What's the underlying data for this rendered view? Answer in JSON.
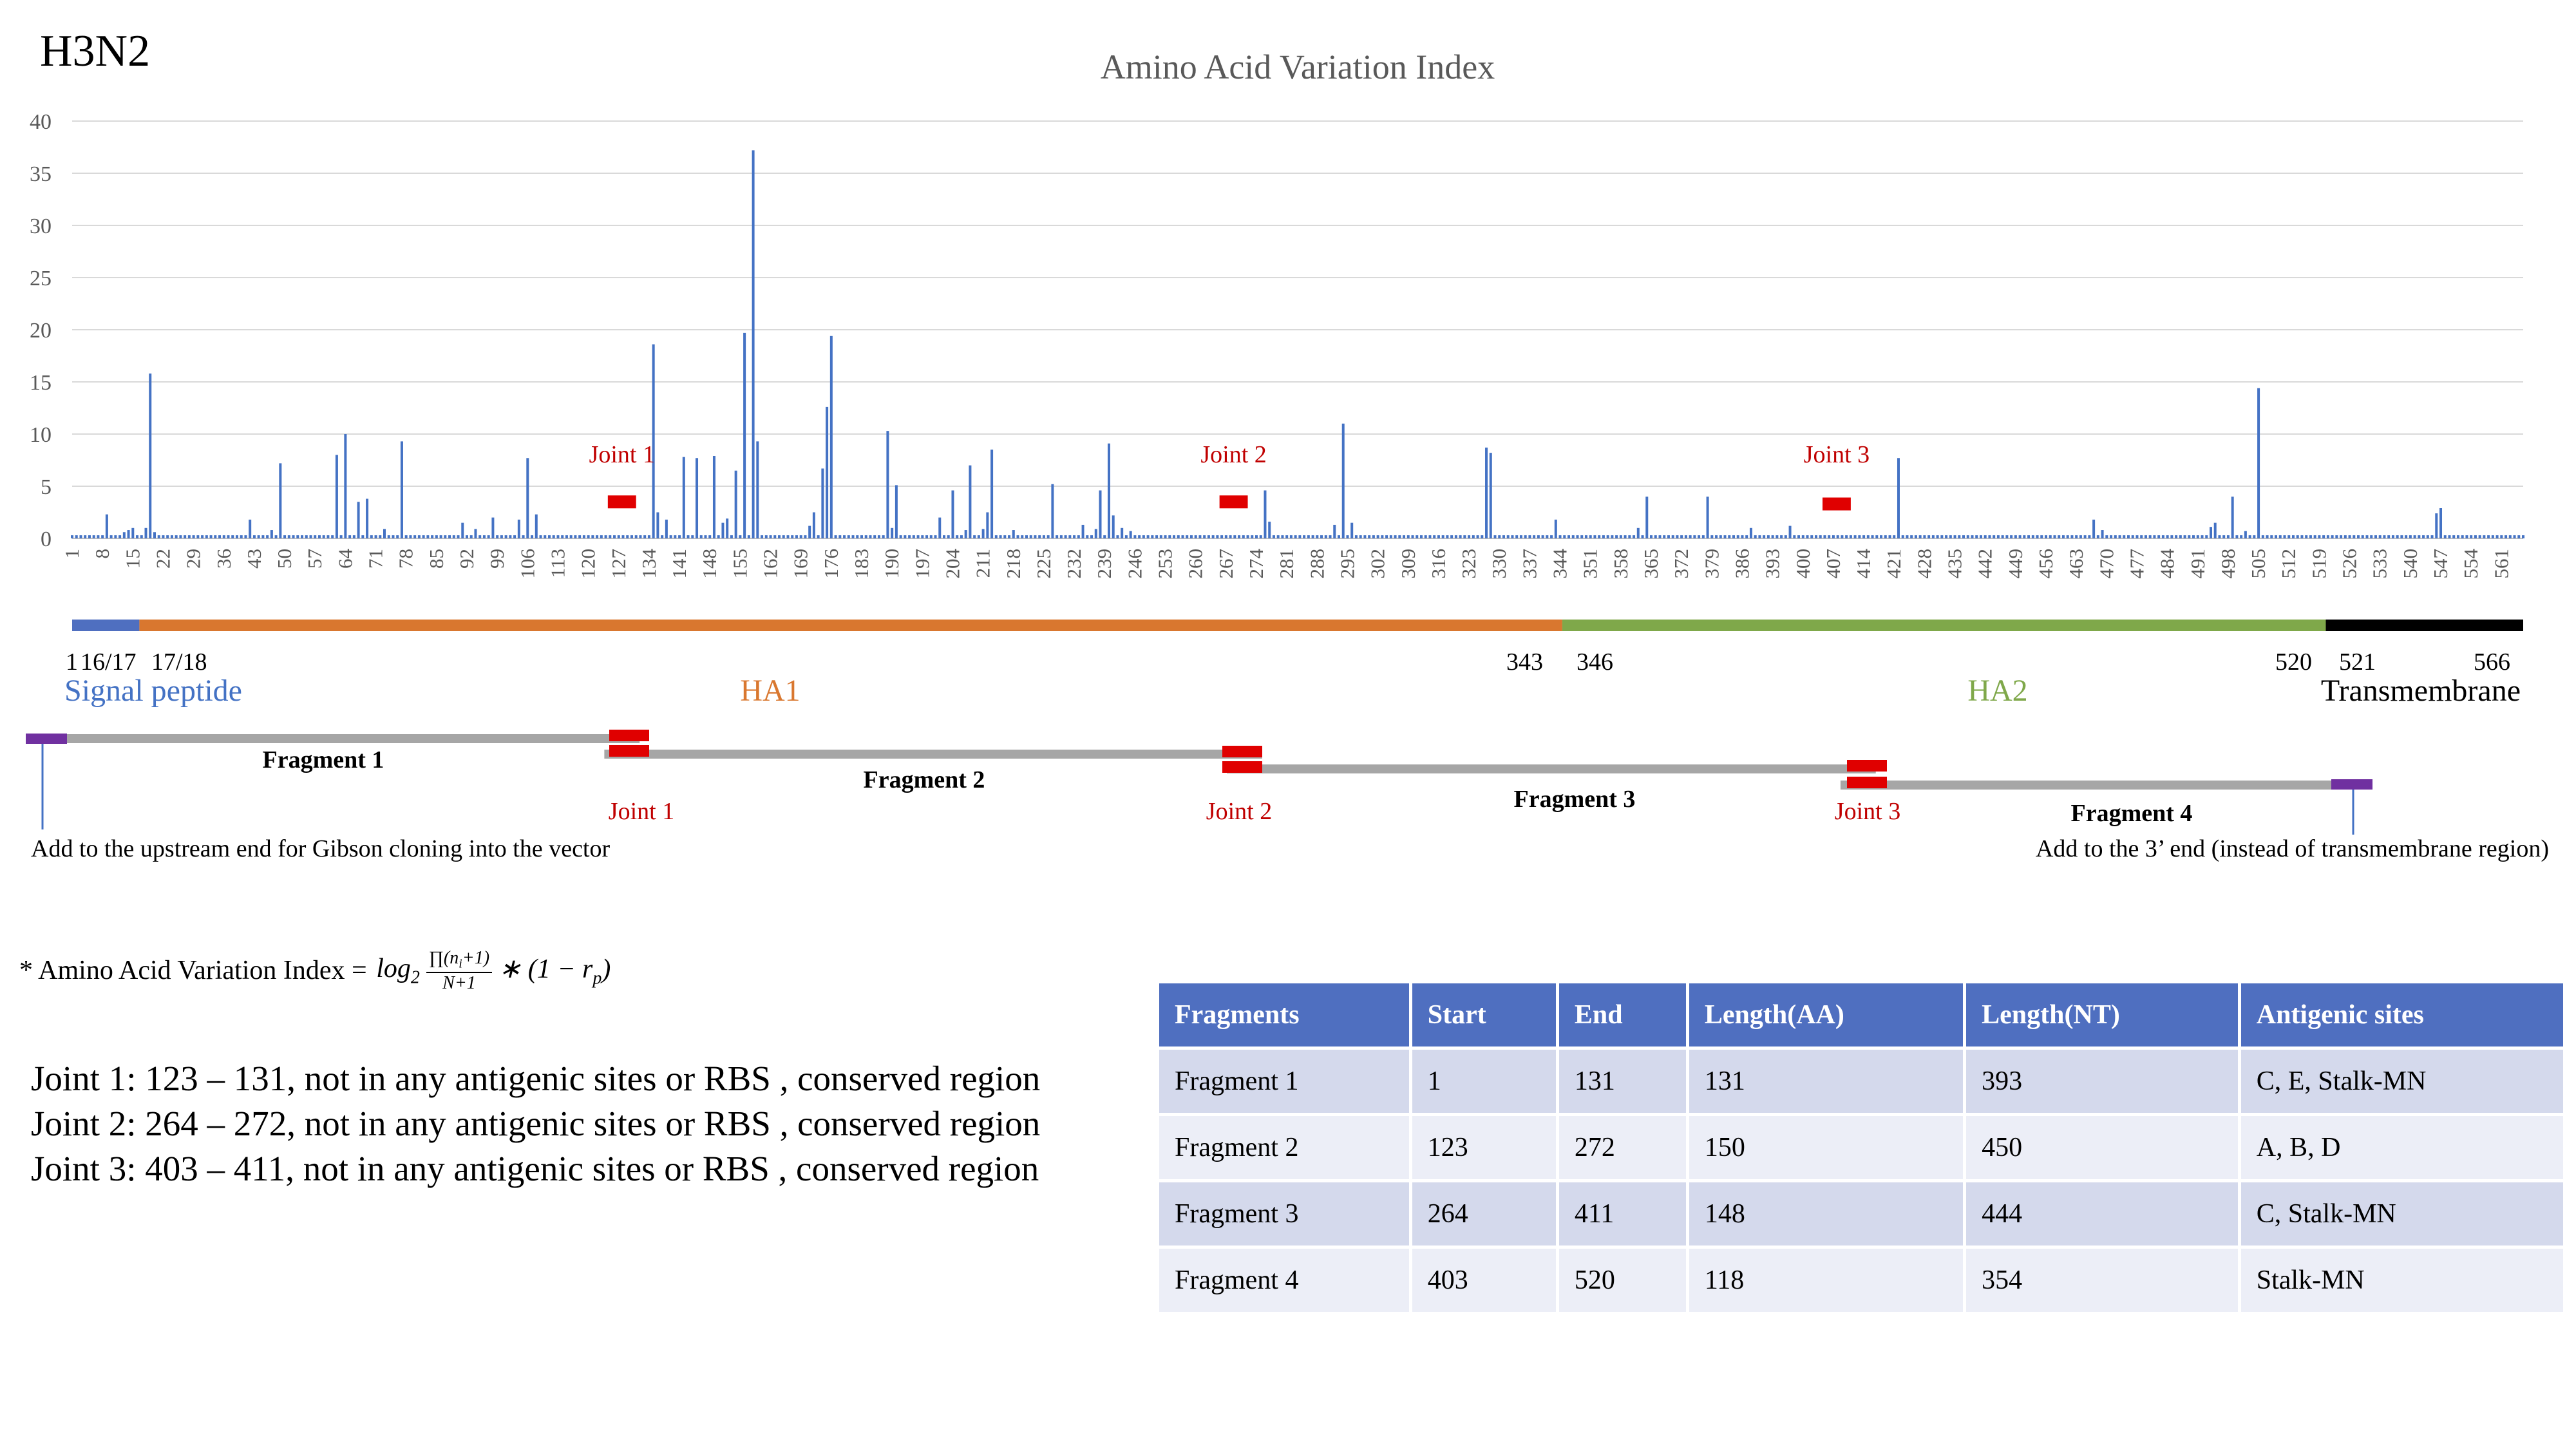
{
  "corner_label": "H3N2",
  "chart_data": {
    "type": "bar",
    "title": "Amino Acid Variation Index",
    "xlabel": "",
    "ylabel": "",
    "ylim": [
      0,
      40
    ],
    "yticks": [
      0,
      5,
      10,
      15,
      20,
      25,
      30,
      35,
      40
    ],
    "grid": true,
    "xlim": [
      1,
      566
    ],
    "xticks": [
      1,
      8,
      15,
      22,
      29,
      36,
      43,
      50,
      57,
      64,
      71,
      78,
      85,
      92,
      99,
      106,
      113,
      120,
      127,
      134,
      141,
      148,
      155,
      162,
      169,
      176,
      183,
      190,
      197,
      204,
      211,
      218,
      225,
      232,
      239,
      246,
      253,
      260,
      267,
      274,
      281,
      288,
      295,
      302,
      309,
      316,
      323,
      330,
      337,
      344,
      351,
      358,
      365,
      372,
      379,
      386,
      393,
      400,
      407,
      414,
      421,
      428,
      435,
      442,
      449,
      456,
      463,
      470,
      477,
      484,
      491,
      498,
      505,
      512,
      519,
      526,
      533,
      540,
      547,
      554,
      561
    ],
    "baseline": 0.3,
    "peaks": [
      {
        "x": 9,
        "y": 2.3
      },
      {
        "x": 13,
        "y": 0.6
      },
      {
        "x": 14,
        "y": 0.8
      },
      {
        "x": 15,
        "y": 1.0
      },
      {
        "x": 18,
        "y": 1.0
      },
      {
        "x": 19,
        "y": 15.8
      },
      {
        "x": 20,
        "y": 0.6
      },
      {
        "x": 42,
        "y": 1.8
      },
      {
        "x": 47,
        "y": 0.8
      },
      {
        "x": 49,
        "y": 7.2
      },
      {
        "x": 62,
        "y": 8.0
      },
      {
        "x": 64,
        "y": 10.0
      },
      {
        "x": 67,
        "y": 3.5
      },
      {
        "x": 69,
        "y": 3.8
      },
      {
        "x": 73,
        "y": 0.9
      },
      {
        "x": 77,
        "y": 9.3
      },
      {
        "x": 91,
        "y": 1.5
      },
      {
        "x": 94,
        "y": 0.9
      },
      {
        "x": 98,
        "y": 2.0
      },
      {
        "x": 104,
        "y": 1.8
      },
      {
        "x": 106,
        "y": 7.7
      },
      {
        "x": 108,
        "y": 2.3
      },
      {
        "x": 135,
        "y": 18.6
      },
      {
        "x": 136,
        "y": 2.5
      },
      {
        "x": 138,
        "y": 1.8
      },
      {
        "x": 142,
        "y": 7.8
      },
      {
        "x": 145,
        "y": 7.7
      },
      {
        "x": 149,
        "y": 7.9
      },
      {
        "x": 151,
        "y": 1.5
      },
      {
        "x": 152,
        "y": 1.9
      },
      {
        "x": 154,
        "y": 6.5
      },
      {
        "x": 156,
        "y": 19.7
      },
      {
        "x": 158,
        "y": 37.2
      },
      {
        "x": 159,
        "y": 9.3
      },
      {
        "x": 171,
        "y": 1.2
      },
      {
        "x": 172,
        "y": 2.5
      },
      {
        "x": 174,
        "y": 6.7
      },
      {
        "x": 175,
        "y": 12.6
      },
      {
        "x": 176,
        "y": 19.4
      },
      {
        "x": 189,
        "y": 10.3
      },
      {
        "x": 190,
        "y": 1.0
      },
      {
        "x": 191,
        "y": 5.1
      },
      {
        "x": 201,
        "y": 2.0
      },
      {
        "x": 204,
        "y": 4.6
      },
      {
        "x": 207,
        "y": 0.8
      },
      {
        "x": 208,
        "y": 7.0
      },
      {
        "x": 211,
        "y": 0.9
      },
      {
        "x": 212,
        "y": 2.5
      },
      {
        "x": 213,
        "y": 8.5
      },
      {
        "x": 218,
        "y": 0.8
      },
      {
        "x": 227,
        "y": 5.2
      },
      {
        "x": 234,
        "y": 1.3
      },
      {
        "x": 237,
        "y": 0.9
      },
      {
        "x": 238,
        "y": 4.6
      },
      {
        "x": 240,
        "y": 9.1
      },
      {
        "x": 241,
        "y": 2.2
      },
      {
        "x": 243,
        "y": 1.0
      },
      {
        "x": 245,
        "y": 0.7
      },
      {
        "x": 276,
        "y": 4.6
      },
      {
        "x": 277,
        "y": 1.6
      },
      {
        "x": 292,
        "y": 1.3
      },
      {
        "x": 294,
        "y": 11.0
      },
      {
        "x": 296,
        "y": 1.5
      },
      {
        "x": 327,
        "y": 8.7
      },
      {
        "x": 328,
        "y": 8.2
      },
      {
        "x": 343,
        "y": 1.8
      },
      {
        "x": 362,
        "y": 1.0
      },
      {
        "x": 364,
        "y": 4.0
      },
      {
        "x": 378,
        "y": 4.0
      },
      {
        "x": 388,
        "y": 1.0
      },
      {
        "x": 397,
        "y": 1.2
      },
      {
        "x": 422,
        "y": 7.7
      },
      {
        "x": 467,
        "y": 1.8
      },
      {
        "x": 469,
        "y": 0.8
      },
      {
        "x": 494,
        "y": 1.1
      },
      {
        "x": 495,
        "y": 1.5
      },
      {
        "x": 499,
        "y": 4.0
      },
      {
        "x": 502,
        "y": 0.7
      },
      {
        "x": 505,
        "y": 14.4
      },
      {
        "x": 546,
        "y": 2.4
      },
      {
        "x": 547,
        "y": 2.9
      }
    ],
    "joint_markers": [
      {
        "label": "Joint 1",
        "start": 123,
        "end": 131,
        "y": 3.5
      },
      {
        "label": "Joint 2",
        "start": 264,
        "end": 272,
        "y": 3.5
      },
      {
        "label": "Joint 3",
        "start": 403,
        "end": 411,
        "y": 3.3
      }
    ],
    "domains": [
      {
        "name": "Signal peptide",
        "start": 1,
        "end": 16.5,
        "color": "#4f6fc0"
      },
      {
        "name": "HA1",
        "start": 16.5,
        "end": 344.5,
        "color": "#d9772f"
      },
      {
        "name": "HA2",
        "start": 344.5,
        "end": 520.5,
        "color": "#7fa84a"
      },
      {
        "name": "Transmembrane",
        "start": 520.5,
        "end": 566,
        "color": "#000000"
      }
    ],
    "domain_numbers": [
      "1",
      "16/17",
      "17/18",
      "343",
      "346",
      "520",
      "521",
      "566"
    ],
    "fragments": [
      {
        "name": "Fragment 1",
        "start": 1,
        "end": 131
      },
      {
        "name": "Fragment 2",
        "start": 123,
        "end": 272
      },
      {
        "name": "Fragment 3",
        "start": 264,
        "end": 411
      },
      {
        "name": "Fragment 4",
        "start": 403,
        "end": 520
      }
    ],
    "colors": {
      "bars": "#4472c4",
      "joint": "#e00000",
      "fragment": "#a6a6a6",
      "adapter": "#7030a0",
      "grid": "#d9d9d9"
    }
  },
  "notes": {
    "upstream": "Add to the upstream end for Gibson cloning into the vector",
    "downstream": "Add to the 3’ end (instead of transmembrane region)"
  },
  "formula": {
    "prefix": "* Amino Acid Variation Index = ",
    "log": "log",
    "base": "2",
    "numerator": "∏(n",
    "numerator_sub": "i",
    "numerator_end": "+1)",
    "denominator": "N+1",
    "tail": "∗ (1 − r",
    "tail_sub": "p",
    "tail_end": ")"
  },
  "joint_notes": [
    "Joint 1: 123 – 131, not in any antigenic sites or RBS , conserved region",
    "Joint 2: 264 – 272, not in any antigenic sites or RBS , conserved region",
    "Joint 3: 403 – 411, not in any antigenic sites or RBS , conserved region"
  ],
  "table": {
    "headers": [
      "Fragments",
      "Start",
      "End",
      "Length(AA)",
      "Length(NT)",
      "Antigenic sites"
    ],
    "rows": [
      [
        "Fragment 1",
        "1",
        "131",
        "131",
        "393",
        "C, E, Stalk-MN"
      ],
      [
        "Fragment 2",
        "123",
        "272",
        "150",
        "450",
        "A, B, D"
      ],
      [
        "Fragment 3",
        "264",
        "411",
        "148",
        "444",
        "C, Stalk-MN"
      ],
      [
        "Fragment 4",
        "403",
        "520",
        "118",
        "354",
        "Stalk-MN"
      ]
    ]
  }
}
